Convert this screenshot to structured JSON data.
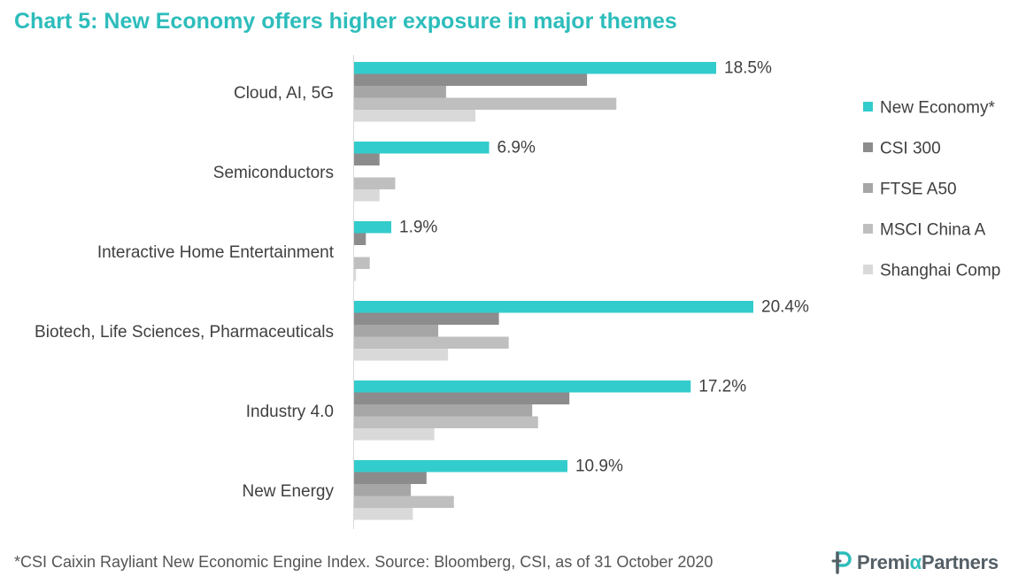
{
  "title": "Chart 5: New Economy offers higher exposure in major themes",
  "footnote": "*CSI Caixin Rayliant New Economic Engine Index. Source: Bloomberg,  CSI, as of 31 October 2020",
  "logo": {
    "part1": "Premi",
    "alpha": "α",
    "part2": "Partners"
  },
  "chart_data": {
    "type": "bar",
    "orientation": "horizontal",
    "categories": [
      "Cloud, AI, 5G",
      "Semiconductors",
      "Interactive Home Entertainment",
      "Biotech, Life Sciences, Pharmaceuticals",
      "Industry 4.0",
      "New Energy"
    ],
    "series": [
      {
        "name": "New Economy*",
        "color": "#33cccc",
        "values": [
          18.5,
          6.9,
          1.9,
          20.4,
          17.2,
          10.9
        ],
        "labels": [
          "18.5%",
          "6.9%",
          "1.9%",
          "20.4%",
          "17.2%",
          "10.9%"
        ]
      },
      {
        "name": "CSI 300",
        "color": "#8c8c8c",
        "values": [
          11.9,
          1.3,
          0.6,
          7.4,
          11.0,
          3.7
        ]
      },
      {
        "name": "FTSE A50",
        "color": "#a6a6a6",
        "values": [
          4.7,
          0.0,
          0.0,
          4.3,
          9.1,
          2.9
        ]
      },
      {
        "name": "MSCI China A",
        "color": "#bfbfbf",
        "values": [
          13.4,
          2.1,
          0.8,
          7.9,
          9.4,
          5.1
        ]
      },
      {
        "name": "Shanghai Comp",
        "color": "#d9d9d9",
        "values": [
          6.2,
          1.3,
          0.1,
          4.8,
          4.1,
          3.0
        ]
      }
    ],
    "xlim": [
      0,
      22
    ],
    "legend_position": "right",
    "grid": false
  }
}
